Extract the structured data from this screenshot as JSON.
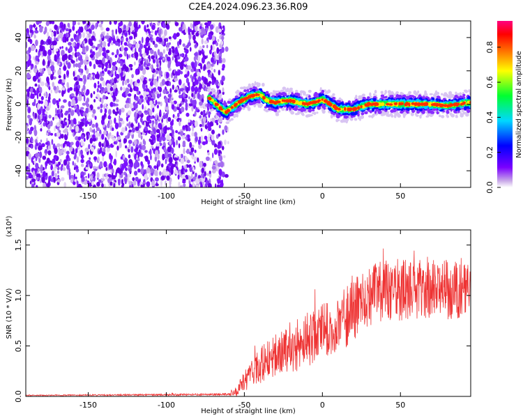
{
  "figure": {
    "title": "C2E4.2024.096.23.36.R09",
    "x_label": "Height of straight line (km)",
    "colorbar_label": "Normalized spectral amplitude"
  },
  "chart_data": [
    {
      "type": "heatmap",
      "xlabel": "Height of straight line (km)",
      "ylabel": "Frequency (Hz)",
      "xlim": [
        -190,
        95
      ],
      "ylim": [
        -50,
        50
      ],
      "xticks": [
        -150,
        -100,
        -50,
        0,
        50
      ],
      "yticks": [
        -40,
        -20,
        0,
        20,
        40
      ],
      "colorbar": {
        "label": "Normalized spectral amplitude",
        "range": [
          0.0,
          0.95
        ],
        "ticks": [
          0.0,
          0.2,
          0.4,
          0.6,
          0.8
        ],
        "colormap": [
          "#c8a8e8",
          "#7a00ff",
          "#0000ff",
          "#00e0ff",
          "#00ff40",
          "#ffff00",
          "#ff8000",
          "#ff0000",
          "#ff0080"
        ]
      },
      "features": {
        "broadband_noise_x_range": [
          -190,
          -63
        ],
        "coherent_echo_x_range": [
          -73,
          95
        ],
        "echo_center_frequency": [
          [
            -73,
            4
          ],
          [
            -62,
            -5
          ],
          [
            -58,
            -2
          ],
          [
            -52,
            2
          ],
          [
            -45,
            5
          ],
          [
            -40,
            6
          ],
          [
            -35,
            2
          ],
          [
            -30,
            1
          ],
          [
            -25,
            2
          ],
          [
            -20,
            2
          ],
          [
            -15,
            1
          ],
          [
            -10,
            0
          ],
          [
            -5,
            1
          ],
          [
            0,
            3
          ],
          [
            5,
            0
          ],
          [
            10,
            -3
          ],
          [
            15,
            -3
          ],
          [
            20,
            -3
          ],
          [
            30,
            0
          ],
          [
            40,
            0
          ],
          [
            50,
            0
          ],
          [
            60,
            0
          ],
          [
            70,
            0
          ],
          [
            80,
            -1
          ],
          [
            95,
            1
          ]
        ]
      }
    },
    {
      "type": "line",
      "xlabel": "Height of straight line (km)",
      "ylabel": "SNR (10 * V/V)",
      "y_multiplier": "(x10⁴)",
      "xlim": [
        -190,
        95
      ],
      "ylim": [
        0,
        1.65
      ],
      "xticks": [
        -150,
        -100,
        -50,
        0,
        50
      ],
      "yticks": [
        0.0,
        0.5,
        1.0,
        1.5
      ],
      "series": [
        {
          "color": "#ee3333",
          "envelope_x": [
            -190,
            -60,
            -55,
            -50,
            -45,
            -40,
            -35,
            -30,
            -25,
            -20,
            -15,
            -10,
            -5,
            0,
            5,
            10,
            15,
            20,
            25,
            30,
            40,
            50,
            60,
            70,
            80,
            90,
            95
          ],
          "envelope_mean": [
            0.01,
            0.02,
            0.05,
            0.15,
            0.22,
            0.3,
            0.38,
            0.4,
            0.45,
            0.5,
            0.52,
            0.56,
            0.6,
            0.65,
            0.68,
            0.72,
            0.78,
            0.85,
            0.95,
            1.0,
            1.05,
            1.05,
            1.07,
            1.05,
            1.06,
            1.08,
            1.05
          ],
          "envelope_spread": [
            0.005,
            0.01,
            0.05,
            0.1,
            0.14,
            0.18,
            0.2,
            0.22,
            0.25,
            0.26,
            0.26,
            0.27,
            0.27,
            0.27,
            0.27,
            0.28,
            0.3,
            0.3,
            0.3,
            0.3,
            0.3,
            0.3,
            0.3,
            0.3,
            0.3,
            0.3,
            0.3
          ]
        }
      ]
    }
  ]
}
